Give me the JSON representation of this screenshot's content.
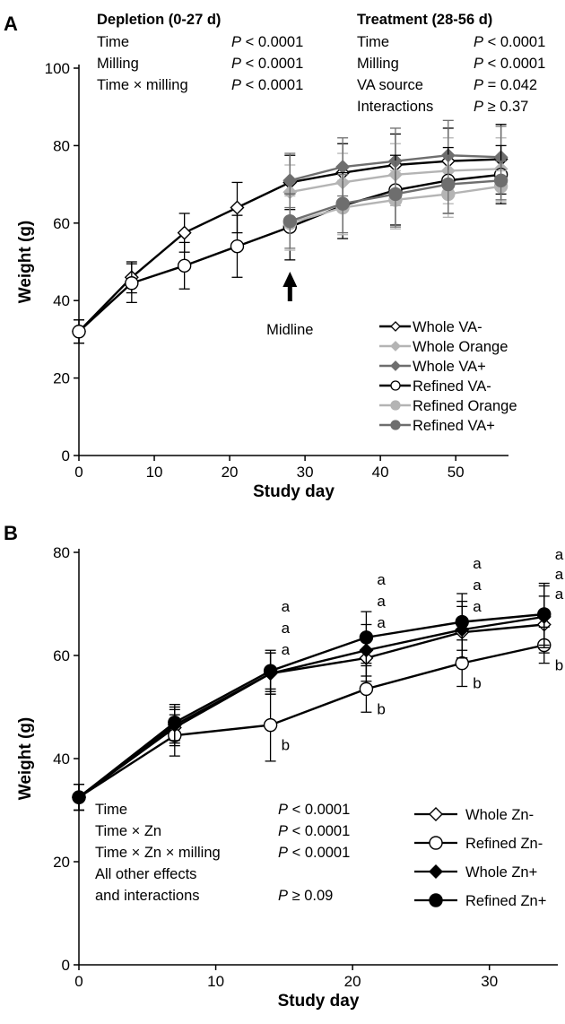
{
  "chart_data": [
    {
      "panel": "A",
      "type": "line",
      "xlabel": "Study day",
      "ylabel": "Weight (g)",
      "xlim": [
        0,
        57
      ],
      "ylim": [
        0,
        100
      ],
      "xticks": [
        0,
        10,
        20,
        30,
        40,
        50
      ],
      "yticks": [
        0,
        20,
        40,
        60,
        80,
        100
      ],
      "series": [
        {
          "name": "Whole VA-",
          "color": "#000000",
          "marker": "diamond-open",
          "x": [
            0,
            7,
            14,
            21,
            28,
            35,
            42,
            49,
            56
          ],
          "y": [
            32,
            46,
            57.5,
            64,
            70.5,
            73,
            75,
            76,
            76.5
          ],
          "err": [
            3,
            4,
            5,
            6.5,
            7,
            7.5,
            8,
            8.5,
            9
          ]
        },
        {
          "name": "Whole Orange",
          "color": "#b4b4b4",
          "marker": "diamond",
          "x": [
            28,
            35,
            42,
            49,
            56
          ],
          "y": [
            68,
            70.5,
            72.5,
            73.5,
            74
          ],
          "err": [
            7,
            7.5,
            8,
            8.5,
            8
          ]
        },
        {
          "name": "Whole VA+",
          "color": "#6e6e6e",
          "marker": "diamond",
          "x": [
            28,
            35,
            42,
            49,
            56
          ],
          "y": [
            71,
            74.5,
            76,
            77.5,
            77
          ],
          "err": [
            7,
            7.5,
            8.5,
            9,
            8
          ]
        },
        {
          "name": "Refined VA-",
          "color": "#000000",
          "marker": "circle-open",
          "x": [
            0,
            7,
            14,
            21,
            28,
            35,
            42,
            49,
            56
          ],
          "y": [
            32,
            44.5,
            49,
            54,
            59,
            64.5,
            68.5,
            71,
            72.5
          ],
          "err": [
            3,
            5,
            6,
            8,
            8.5,
            8.5,
            9,
            8.5,
            7.5
          ]
        },
        {
          "name": "Refined Orange",
          "color": "#b4b4b4",
          "marker": "circle",
          "x": [
            28,
            35,
            42,
            49,
            56
          ],
          "y": [
            60,
            64,
            66,
            67.5,
            69.5
          ],
          "err": [
            7,
            7,
            7.5,
            6,
            4
          ]
        },
        {
          "name": "Refined VA+",
          "color": "#6e6e6e",
          "marker": "circle",
          "x": [
            28,
            35,
            42,
            49,
            56
          ],
          "y": [
            60.5,
            65,
            67.5,
            70,
            71
          ],
          "err": [
            7,
            7.5,
            8.5,
            7.5,
            5
          ]
        }
      ],
      "annotations": {
        "midline_label": "Midline",
        "depletion": {
          "title": "Depletion (0-27 d)",
          "rows": [
            {
              "effect": "Time",
              "p": "P < 0.0001"
            },
            {
              "effect": "Milling",
              "p": "P < 0.0001"
            },
            {
              "effect": "Time × milling",
              "p": "P < 0.0001"
            }
          ]
        },
        "treatment": {
          "title": "Treatment (28-56 d)",
          "rows": [
            {
              "effect": "Time",
              "p": "P < 0.0001"
            },
            {
              "effect": "Milling",
              "p": "P < 0.0001"
            },
            {
              "effect": "VA source",
              "p": "P = 0.042"
            },
            {
              "effect": "Interactions",
              "p": "P ≥ 0.37"
            }
          ]
        }
      },
      "legend_position": "bottom-right"
    },
    {
      "panel": "B",
      "type": "line",
      "xlabel": "Study day",
      "ylabel": "Weight (g)",
      "xlim": [
        0,
        35
      ],
      "ylim": [
        0,
        80
      ],
      "xticks": [
        0,
        10,
        20,
        30
      ],
      "yticks": [
        0,
        20,
        40,
        60,
        80
      ],
      "series": [
        {
          "name": "Whole Zn-",
          "color": "#000000",
          "marker": "diamond-open",
          "x": [
            0,
            7,
            14,
            21,
            28,
            34
          ],
          "y": [
            32.5,
            46,
            56.5,
            59.5,
            64.5,
            66
          ],
          "err": [
            2.5,
            3.5,
            4,
            4.5,
            5,
            5.5
          ]
        },
        {
          "name": "Refined Zn-",
          "color": "#000000",
          "marker": "circle-open",
          "x": [
            0,
            7,
            14,
            21,
            28,
            34
          ],
          "y": [
            32.5,
            44.5,
            46.5,
            53.5,
            58.5,
            62
          ],
          "err": [
            2.5,
            4,
            7,
            4.5,
            4.5,
            3.5
          ]
        },
        {
          "name": "Whole Zn+",
          "color": "#000000",
          "marker": "diamond",
          "x": [
            0,
            7,
            14,
            21,
            28,
            34
          ],
          "y": [
            32.5,
            46.5,
            56.5,
            61,
            65,
            67.5
          ],
          "err": [
            2.5,
            3.5,
            4,
            5,
            5.5,
            6
          ]
        },
        {
          "name": "Refined Zn+",
          "color": "#000000",
          "marker": "circle",
          "x": [
            0,
            7,
            14,
            21,
            28,
            34
          ],
          "y": [
            32.5,
            47,
            57,
            63.5,
            66.5,
            68
          ],
          "err": [
            2.5,
            3.5,
            4,
            5,
            5.5,
            6
          ]
        }
      ],
      "group_letters": [
        {
          "x": 14,
          "letters": [
            "a",
            "a",
            "a"
          ],
          "b": "b"
        },
        {
          "x": 21,
          "letters": [
            "a",
            "a",
            "a"
          ],
          "b": "b"
        },
        {
          "x": 28,
          "letters": [
            "a",
            "a",
            "a"
          ],
          "b": "b"
        },
        {
          "x": 34,
          "letters": [
            "a",
            "a",
            "a"
          ],
          "b": "b"
        }
      ],
      "annotations": {
        "rows": [
          {
            "effect": "Time",
            "p": "P < 0.0001"
          },
          {
            "effect": "Time × Zn",
            "p": "P < 0.0001"
          },
          {
            "effect": "Time × Zn × milling",
            "p": "P < 0.0001"
          },
          {
            "effect": "All other effects",
            "p": ""
          },
          {
            "effect": "and interactions",
            "p": "P ≥ 0.09"
          }
        ]
      },
      "legend_position": "bottom-right"
    }
  ]
}
